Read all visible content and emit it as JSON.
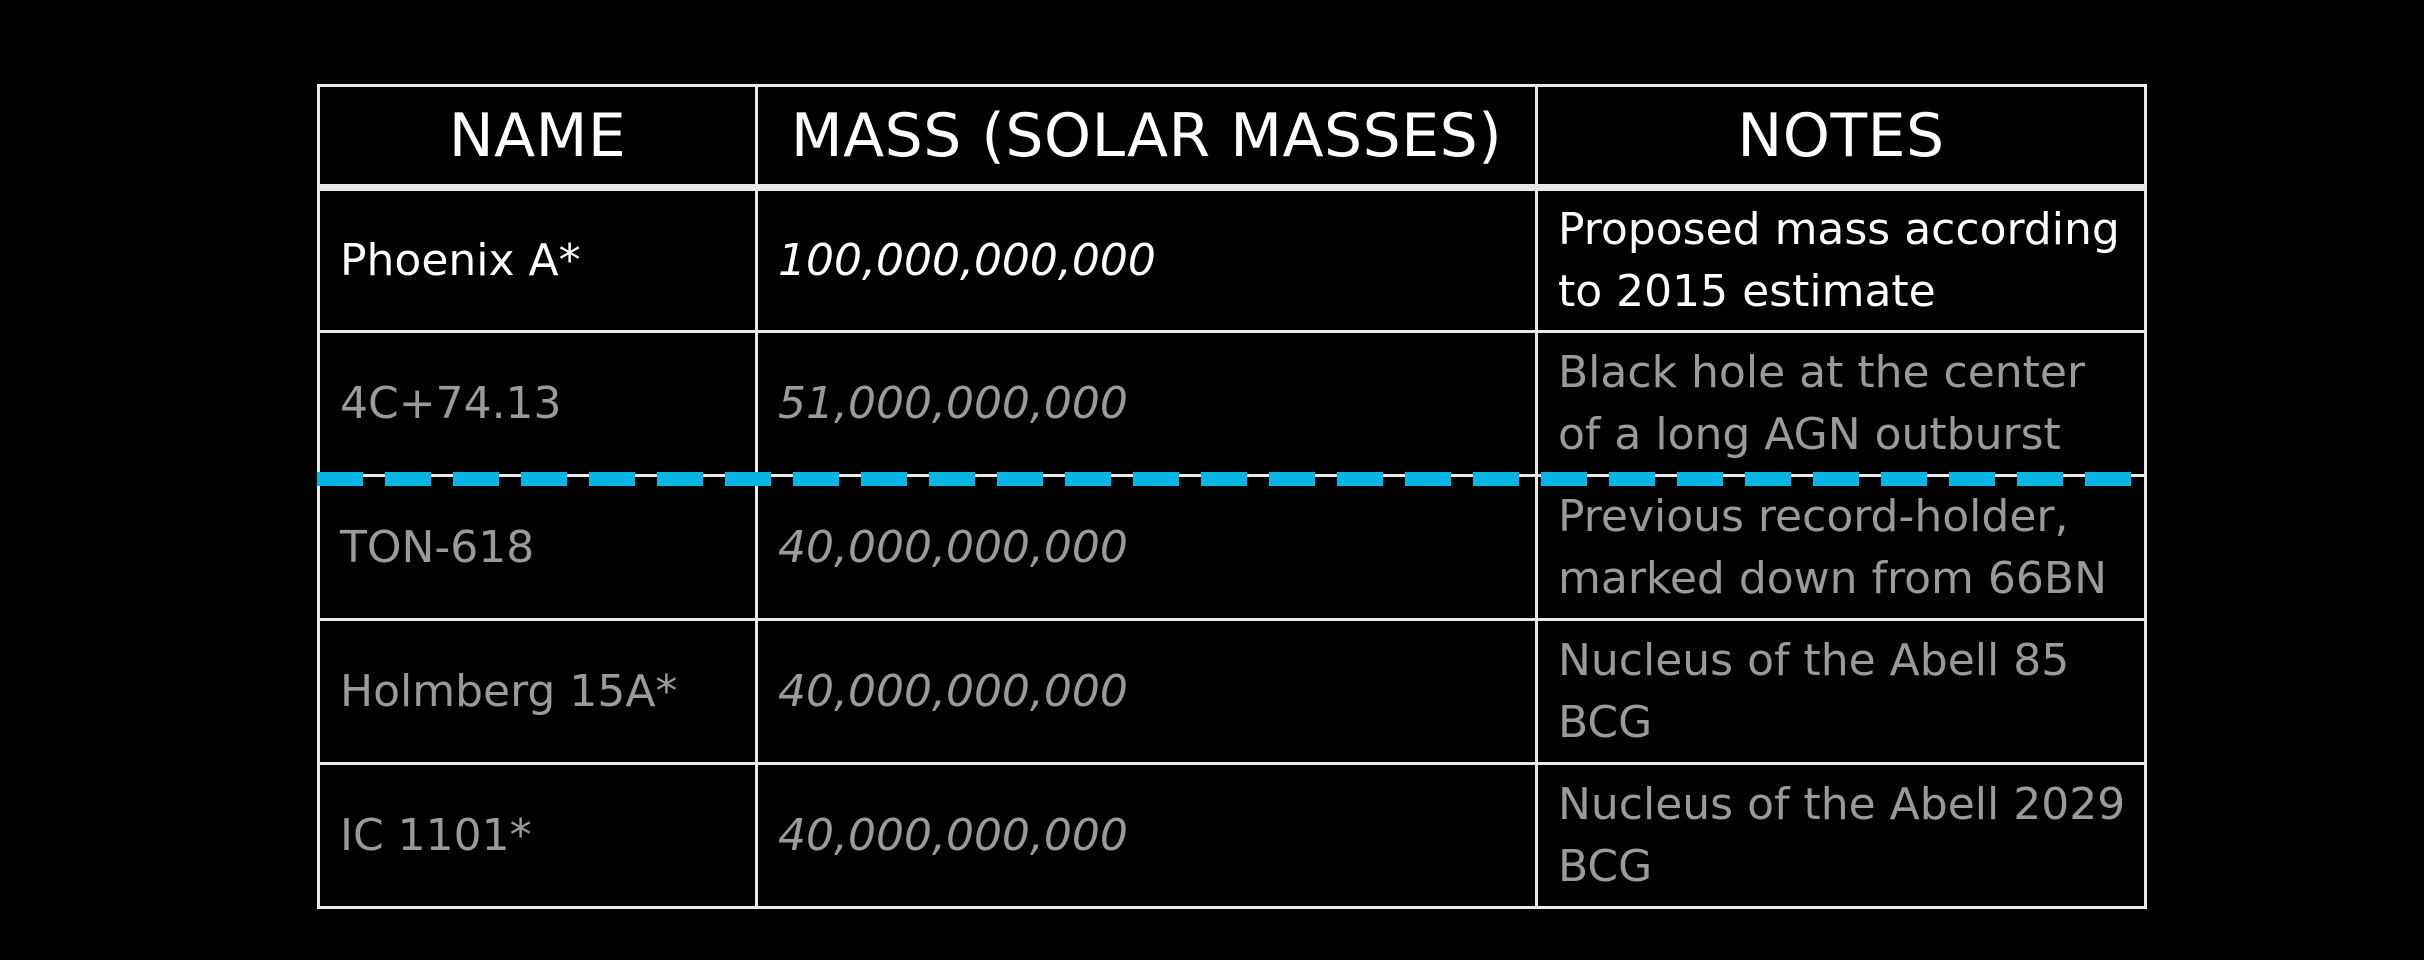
{
  "table": {
    "headers": [
      "NAME",
      "MASS (SOLAR MASSES)",
      "NOTES"
    ],
    "rows": [
      {
        "name": "Phoenix A*",
        "mass": "100,000,000,000",
        "notes": "Proposed mass according to 2015 estimate",
        "color": "#ffffff"
      },
      {
        "name": "4C+74.13",
        "mass": "51,000,000,000",
        "notes": "Black hole at the center of a long AGN outburst",
        "color": "#9a9a9a"
      },
      {
        "name": "TON-618",
        "mass": "40,000,000,000",
        "notes": "Previous record-holder, marked down from 66BN",
        "color": "#9a9a9a"
      },
      {
        "name": "Holmberg 15A*",
        "mass": "40,000,000,000",
        "notes": "Nucleus of the Abell 85 BCG",
        "color": "#9a9a9a"
      },
      {
        "name": "IC 1101*",
        "mass": "40,000,000,000",
        "notes": "Nucleus of the Abell 2029 BCG",
        "color": "#9a9a9a"
      }
    ]
  },
  "colors": {
    "background": "#000000",
    "grid": "#e8e8e8",
    "divider": "#08b6e6"
  }
}
